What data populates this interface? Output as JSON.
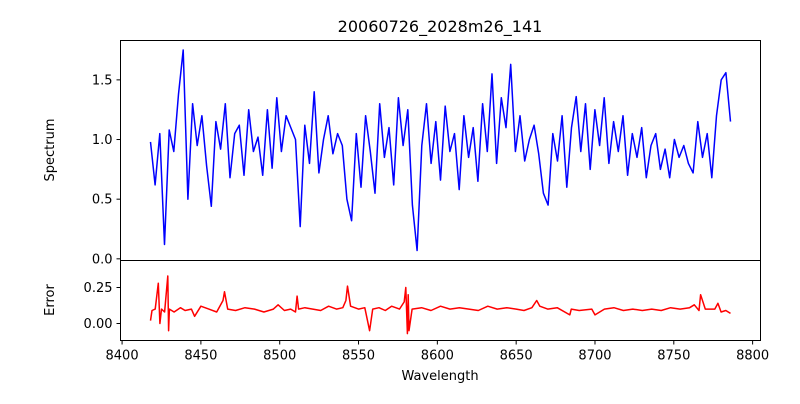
{
  "chart_data": [
    {
      "type": "line",
      "title": "20060726_2028m26_141",
      "xlabel": "",
      "ylabel": "Spectrum",
      "xlim": [
        8399,
        8805
      ],
      "ylim": [
        -0.014,
        1.83
      ],
      "yticks": [
        "0.0",
        "0.5",
        "1.0",
        "1.5"
      ],
      "ytick_values": [
        0,
        0.5,
        1.0,
        1.5
      ],
      "grid": false,
      "color": "#0000ff",
      "x_start": 8418,
      "x_end": 8786,
      "values": [
        0.98,
        0.62,
        1.05,
        0.12,
        1.08,
        0.9,
        1.38,
        1.75,
        0.5,
        1.3,
        0.95,
        1.2,
        0.78,
        0.44,
        1.15,
        0.92,
        1.3,
        0.68,
        1.05,
        1.12,
        0.7,
        1.25,
        0.9,
        1.02,
        0.7,
        1.25,
        0.76,
        1.35,
        0.9,
        1.2,
        1.1,
        1.0,
        0.27,
        1.12,
        0.8,
        1.4,
        0.72,
        1.0,
        1.2,
        0.88,
        1.05,
        0.95,
        0.5,
        0.32,
        1.05,
        0.6,
        1.2,
        0.9,
        0.55,
        1.3,
        0.85,
        1.1,
        0.62,
        1.35,
        0.95,
        1.25,
        0.45,
        0.07,
        0.95,
        1.3,
        0.8,
        1.15,
        0.66,
        1.28,
        0.9,
        1.05,
        0.58,
        1.2,
        0.85,
        1.1,
        0.65,
        1.3,
        0.9,
        1.55,
        0.8,
        1.35,
        1.1,
        1.63,
        0.9,
        1.2,
        0.82,
        1.0,
        1.12,
        0.88,
        0.55,
        0.45,
        1.05,
        0.82,
        1.2,
        0.6,
        1.1,
        1.36,
        0.9,
        1.3,
        0.75,
        1.25,
        0.95,
        1.35,
        0.8,
        1.15,
        0.9,
        1.2,
        0.7,
        1.05,
        0.85,
        1.1,
        0.68,
        0.95,
        1.05,
        0.75,
        0.92,
        0.68,
        1.0,
        0.85,
        0.95,
        0.8,
        0.72,
        1.15,
        0.85,
        1.05,
        0.68,
        1.2,
        1.5,
        1.56,
        1.15
      ]
    },
    {
      "type": "line",
      "title": "",
      "xlabel": "Wavelength",
      "ylabel": "Error",
      "xlim": [
        8399,
        8805
      ],
      "ylim": [
        -0.118,
        0.4375
      ],
      "yticks": [
        "0.00",
        "0.25"
      ],
      "ytick_values": [
        0,
        0.25
      ],
      "xticks": [
        "8400",
        "8450",
        "8500",
        "8550",
        "8600",
        "8650",
        "8700",
        "8750",
        "8800"
      ],
      "xtick_values": [
        8400,
        8450,
        8500,
        8550,
        8600,
        8650,
        8700,
        8750,
        8800
      ],
      "grid": false,
      "color": "#ff0000",
      "x": [
        8418,
        8419,
        8421,
        8423,
        8424,
        8425,
        8427,
        8429,
        8429.5,
        8430,
        8433,
        8437,
        8440,
        8444,
        8446,
        8450,
        8455,
        8460,
        8464,
        8465,
        8467,
        8472,
        8478,
        8484,
        8490,
        8496,
        8499,
        8503,
        8507,
        8510,
        8511,
        8512,
        8516,
        8521,
        8526,
        8531,
        8536,
        8540,
        8542,
        8543,
        8545,
        8550,
        8554,
        8557,
        8559,
        8563,
        8567,
        8571,
        8576,
        8579,
        8580,
        8581,
        8581.5,
        8582,
        8584,
        8590,
        8596,
        8602,
        8608,
        8614,
        8620,
        8626,
        8632,
        8638,
        8644,
        8650,
        8655,
        8660,
        8663,
        8665,
        8670,
        8676,
        8684,
        8685,
        8690,
        8698,
        8700,
        8706,
        8712,
        8718,
        8724,
        8730,
        8736,
        8742,
        8748,
        8754,
        8760,
        8763,
        8766,
        8767,
        8770,
        8776,
        8778,
        8780,
        8783,
        8786
      ],
      "values": [
        0.02,
        0.09,
        0.1,
        0.28,
        0.0,
        0.1,
        0.08,
        0.33,
        -0.05,
        0.1,
        0.08,
        0.11,
        0.09,
        0.1,
        0.05,
        0.12,
        0.1,
        0.08,
        0.16,
        0.22,
        0.1,
        0.09,
        0.11,
        0.1,
        0.08,
        0.1,
        0.13,
        0.09,
        0.1,
        0.08,
        0.19,
        0.1,
        0.11,
        0.1,
        0.09,
        0.12,
        0.1,
        0.11,
        0.16,
        0.26,
        0.12,
        0.1,
        0.11,
        -0.05,
        0.1,
        0.11,
        0.09,
        0.12,
        0.1,
        0.15,
        0.25,
        -0.07,
        0.2,
        -0.05,
        0.1,
        0.11,
        0.09,
        0.12,
        0.1,
        0.11,
        0.1,
        0.09,
        0.12,
        0.1,
        0.11,
        0.1,
        0.09,
        0.11,
        0.16,
        0.12,
        0.1,
        0.11,
        0.06,
        0.1,
        0.09,
        0.1,
        0.06,
        0.1,
        0.11,
        0.09,
        0.1,
        0.09,
        0.1,
        0.09,
        0.11,
        0.1,
        0.11,
        0.13,
        0.09,
        0.2,
        0.1,
        0.1,
        0.14,
        0.08,
        0.09,
        0.07
      ]
    }
  ]
}
